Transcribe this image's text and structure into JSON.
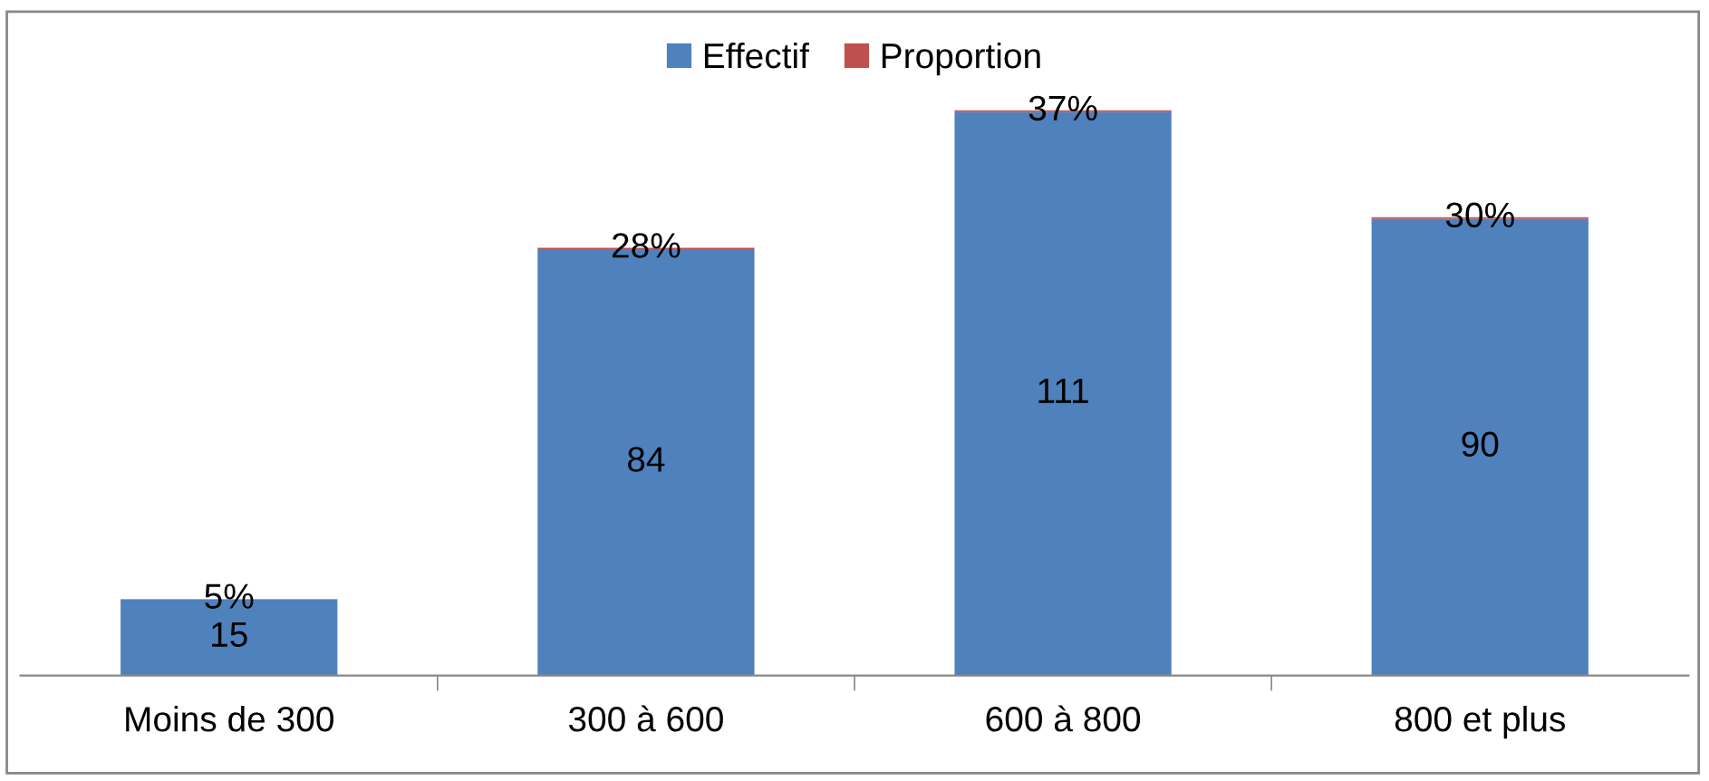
{
  "chart_data": {
    "type": "bar",
    "stacked": true,
    "categories": [
      "Moins de 300",
      "300 à 600",
      "600 à 800",
      "800 et plus"
    ],
    "series": [
      {
        "name": "Effectif",
        "color": "#4f81bd",
        "values": [
          15,
          84,
          111,
          90
        ],
        "value_labels": [
          "15",
          "84",
          "111",
          "90"
        ]
      },
      {
        "name": "Proportion",
        "color": "#c0504d",
        "values": [
          0.05,
          0.28,
          0.37,
          0.3
        ],
        "value_labels": [
          "5%",
          "28%",
          "37%",
          "30%"
        ]
      }
    ],
    "legend": "top"
  }
}
